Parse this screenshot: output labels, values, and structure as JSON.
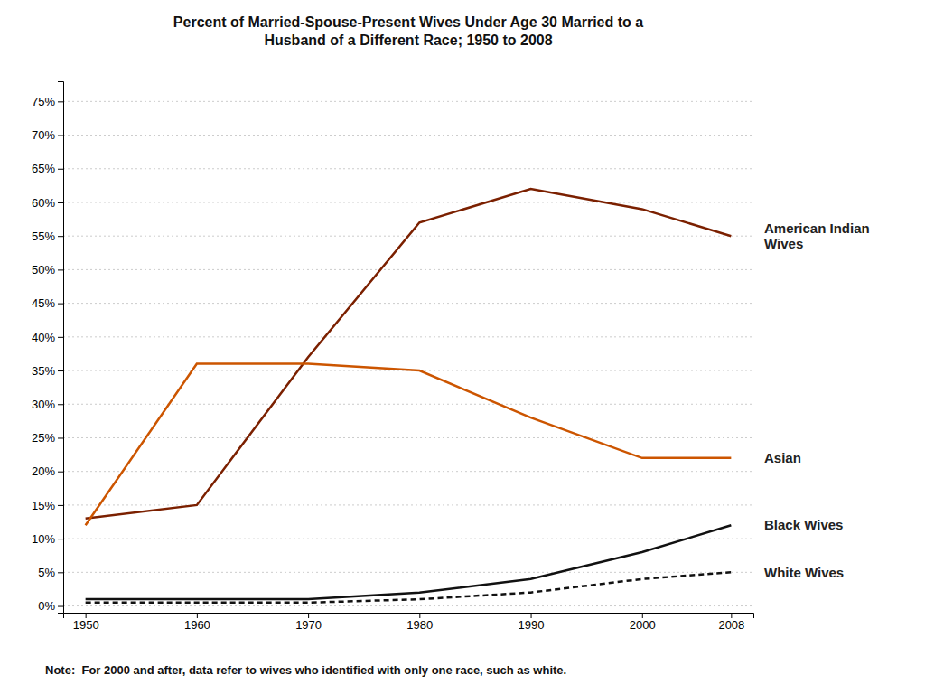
{
  "chart_data": {
    "type": "line",
    "title": "Percent of Married-Spouse-Present Wives Under Age 30 Married to a\nHusband of a Different Race; 1950 to 2008",
    "x": [
      1950,
      1960,
      1970,
      1980,
      1990,
      2000,
      2008
    ],
    "series": [
      {
        "name": "American Indian\nWives",
        "color": "#7B2000",
        "line_style": "solid",
        "values": [
          13,
          15,
          37,
          57,
          62,
          59,
          55
        ]
      },
      {
        "name": "Asian",
        "color": "#CC5500",
        "line_style": "solid",
        "values": [
          12,
          36,
          36,
          35,
          28,
          22,
          22
        ]
      },
      {
        "name": "Black Wives",
        "color": "#111111",
        "line_style": "solid",
        "values": [
          1,
          1,
          1,
          2,
          4,
          8,
          12
        ]
      },
      {
        "name": "White Wives",
        "color": "#111111",
        "line_style": "dashed",
        "values": [
          0.5,
          0.5,
          0.5,
          1,
          2,
          4,
          5
        ]
      }
    ],
    "xlim": [
      1948,
      2010
    ],
    "xticks": [
      1950,
      1960,
      1970,
      1980,
      1990,
      2000,
      2008
    ],
    "ylim": [
      -1,
      78
    ],
    "yticks": [
      {
        "value": 0,
        "label": "0%"
      },
      {
        "value": 5,
        "label": "5%"
      },
      {
        "value": 10,
        "label": "10%"
      },
      {
        "value": 15,
        "label": "15%"
      },
      {
        "value": 20,
        "label": "20%"
      },
      {
        "value": 25,
        "label": "25%"
      },
      {
        "value": 30,
        "label": "30%"
      },
      {
        "value": 35,
        "label": "35%"
      },
      {
        "value": 40,
        "label": "40%"
      },
      {
        "value": 45,
        "label": "45%"
      },
      {
        "value": 50,
        "label": "50%"
      },
      {
        "value": 55,
        "label": "55%"
      },
      {
        "value": 60,
        "label": "60%"
      },
      {
        "value": 65,
        "label": "65%"
      },
      {
        "value": 70,
        "label": "70%"
      },
      {
        "value": 75,
        "label": "75%"
      }
    ],
    "grid": true,
    "annotations": [
      "Note:  For 2000 and after, data refer to wives who identified with only one race, such as white."
    ]
  }
}
